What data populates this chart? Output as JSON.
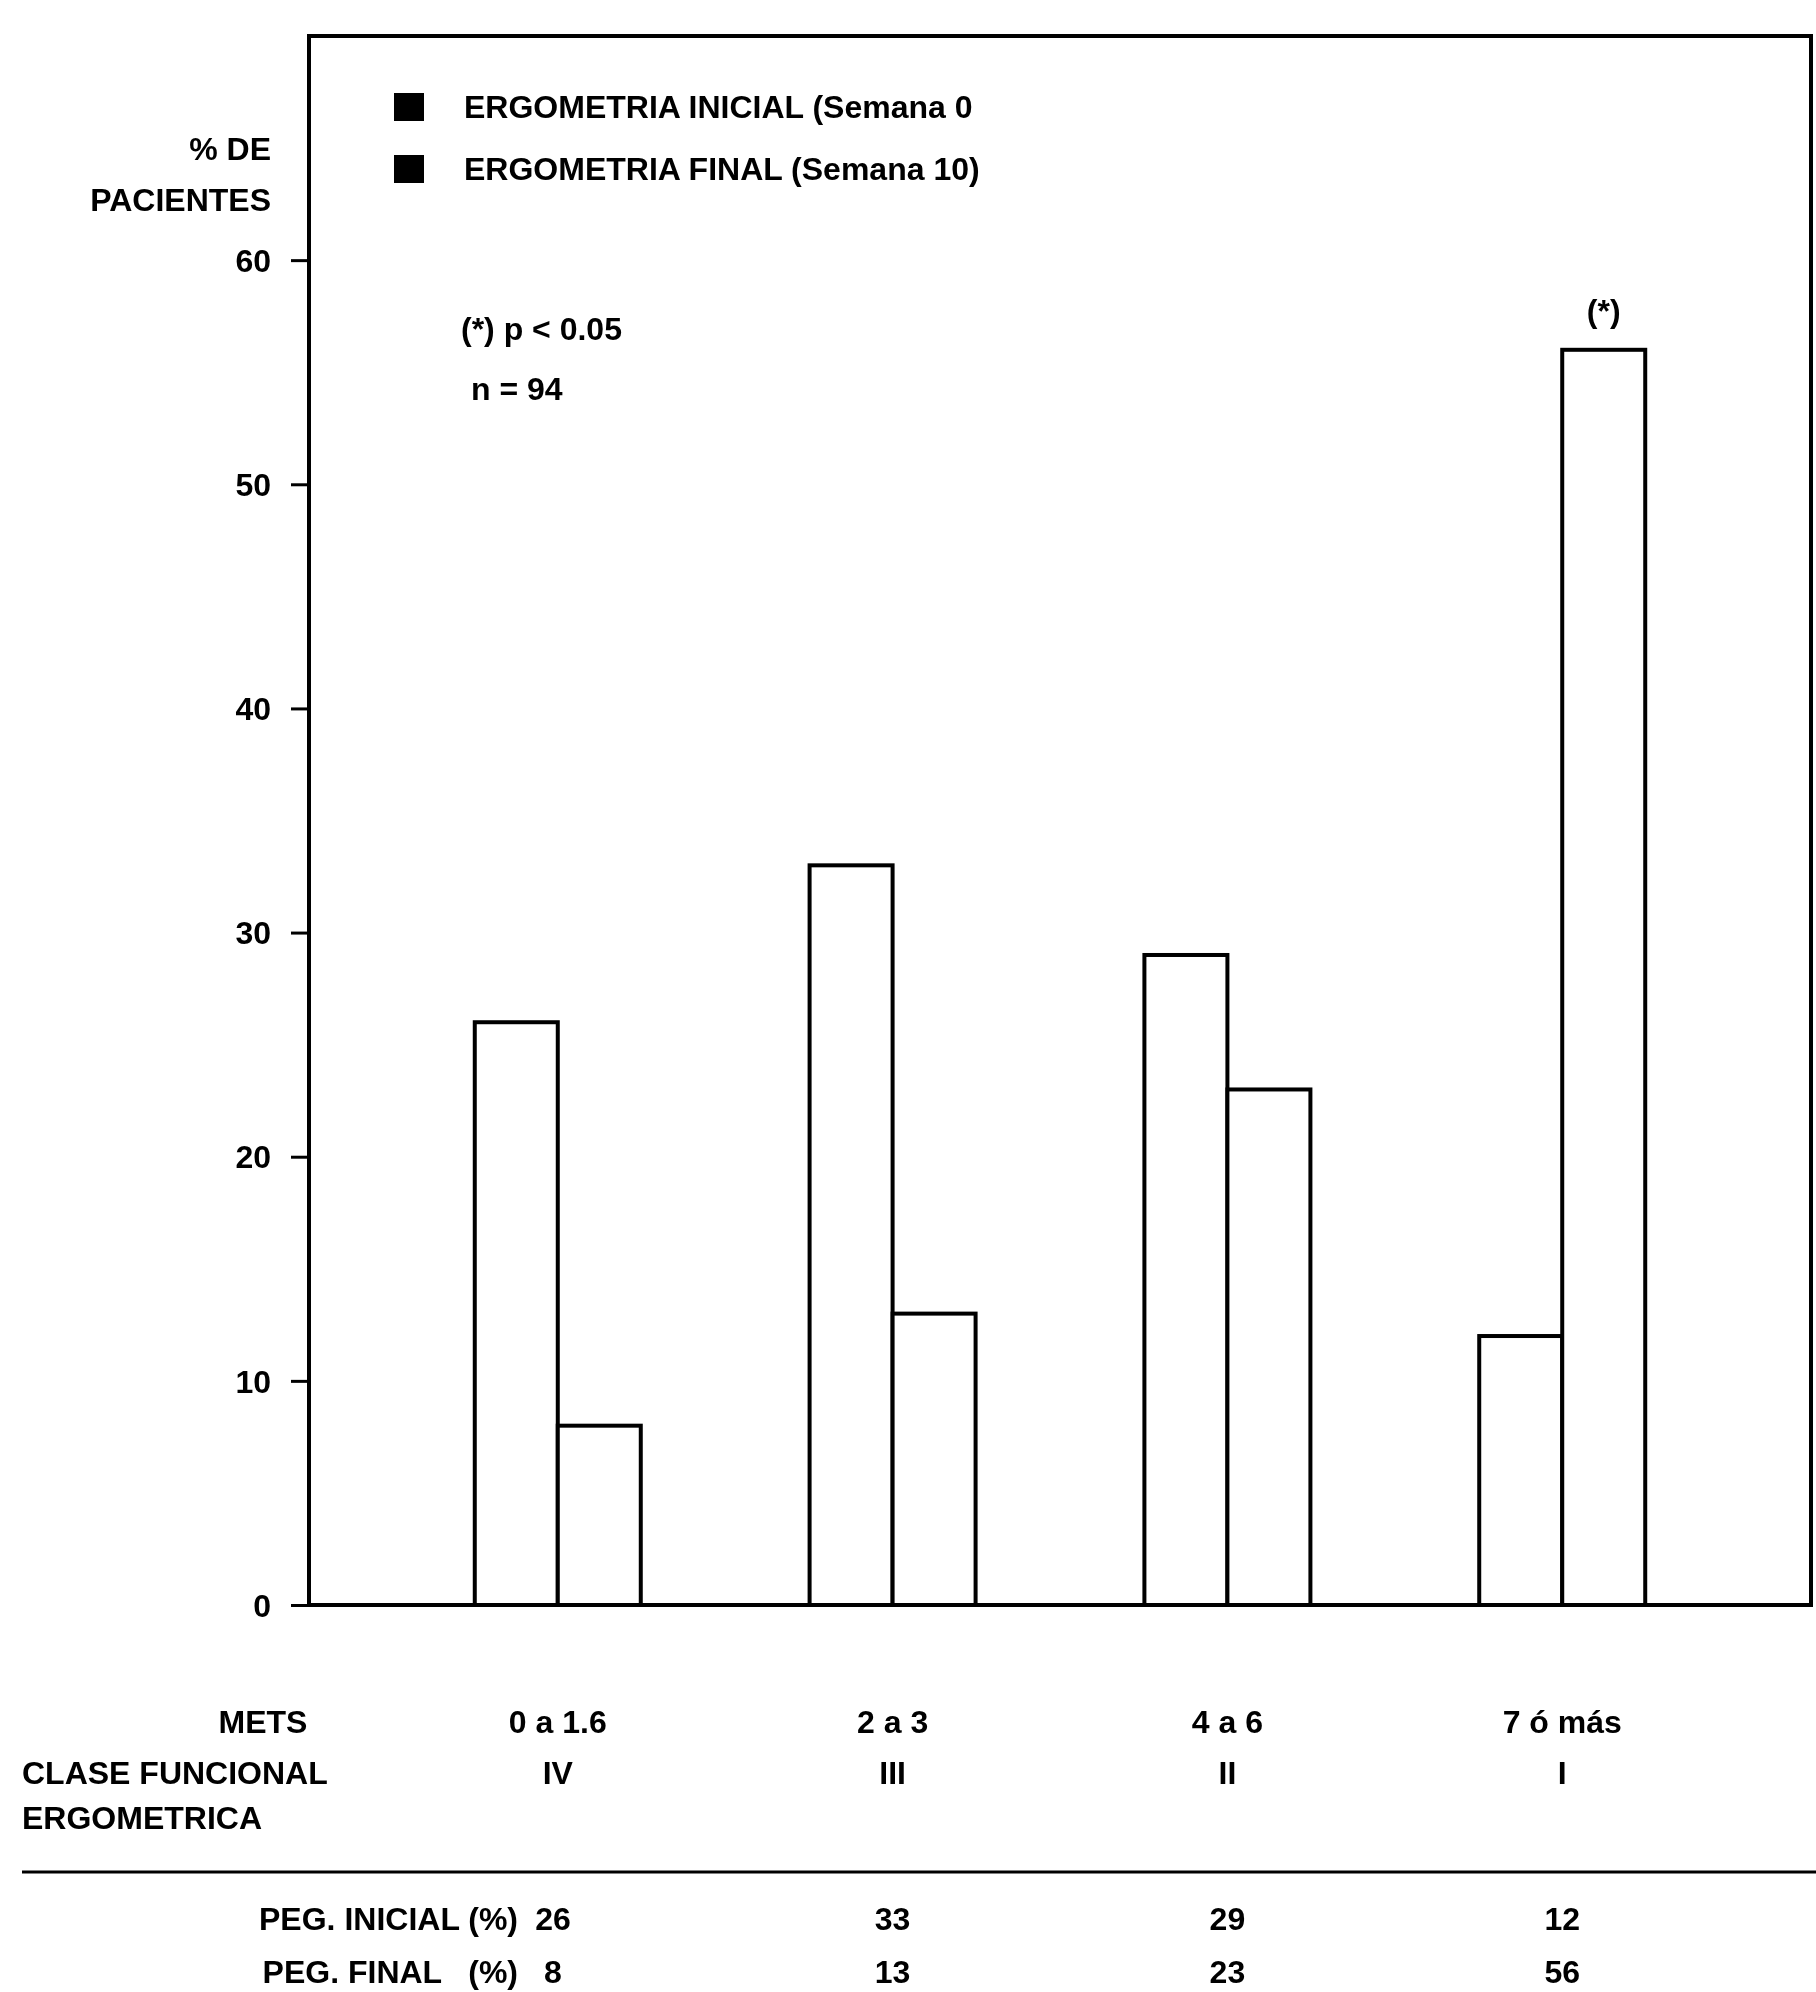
{
  "chart_data": {
    "type": "bar",
    "ylabel": "% DE\nPACIENTES",
    "xlabel": "METS\nCLASE  FUNCIONAL\nERGOMETRICA",
    "categories": [
      "0 a 1.6\nIV",
      "2 a 3\nIII",
      "4 a 6\nII",
      "7 ó más\nI"
    ],
    "series": [
      {
        "name": "ERGOMETRIA INICIAL (Semana 0",
        "color": "#000000",
        "values": [
          26,
          33,
          29,
          12
        ]
      },
      {
        "name": "ERGOMETRIA FINAL (Semana 10)",
        "color": "#000000",
        "values": [
          8,
          13,
          23,
          56
        ]
      }
    ],
    "ylim": [
      0,
      70
    ],
    "yticks": [
      0,
      10,
      20,
      30,
      40,
      50,
      60
    ],
    "grid": false,
    "legend": "top left",
    "data_labels": true,
    "annotations": [
      "(*) p < 0.05",
      "n = 94",
      {
        "text": "(*)",
        "x": "7 ó más\nI",
        "y": 56
      },
      "PEG. INICIAL (%)",
      "PEG. FINAL   (%)"
    ]
  }
}
